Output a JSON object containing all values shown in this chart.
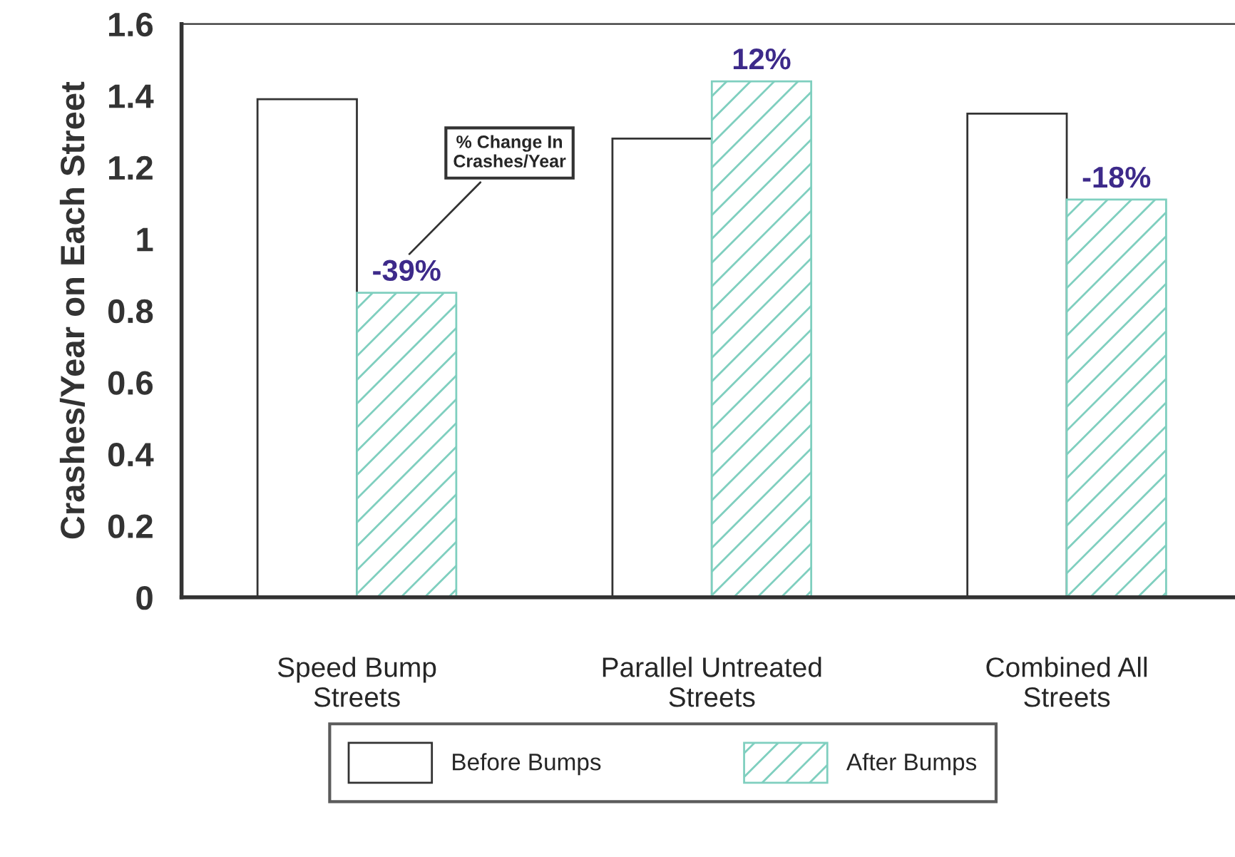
{
  "chart_data": {
    "type": "bar",
    "categories": [
      "Speed Bump\nStreets",
      "Parallel Untreated\nStreets",
      "Combined All\nStreets"
    ],
    "ylabel": "Crashes/Year on Each Street",
    "ylim": [
      0,
      1.6
    ],
    "yticks": [
      0,
      0.2,
      0.4,
      0.6,
      0.8,
      1,
      1.2,
      1.4,
      1.6
    ],
    "series": [
      {
        "name": "Before Bumps",
        "color": "#ffffff",
        "values": [
          1.39,
          1.28,
          1.35
        ]
      },
      {
        "name": "After Bumps",
        "color": "#7fcfbf",
        "values": [
          0.85,
          1.44,
          1.11
        ]
      }
    ],
    "annotations": [
      "% Change In\nCrashes/Year",
      "-39%",
      "12%",
      "-18%"
    ],
    "grid": false,
    "legend": "bottom"
  }
}
